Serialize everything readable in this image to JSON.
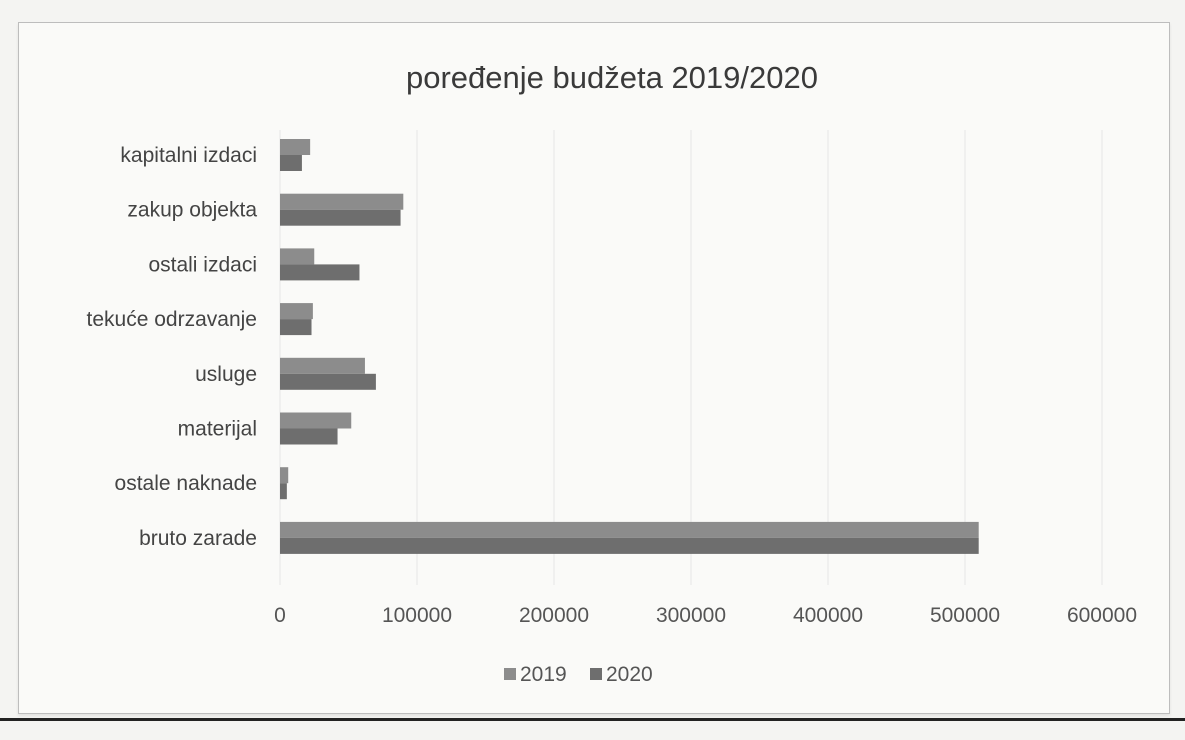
{
  "chart_data": {
    "type": "bar",
    "orientation": "horizontal",
    "title": "poređenje budžeta 2019/2020",
    "categories": [
      "kapitalni izdaci",
      "zakup objekta",
      "ostali izdaci",
      "tekuće odrzavanje",
      "usluge",
      "materijal",
      "ostale naknade",
      "bruto zarade"
    ],
    "series": [
      {
        "name": "2019",
        "values": [
          22000,
          90000,
          25000,
          24000,
          62000,
          52000,
          6000,
          510000
        ]
      },
      {
        "name": "2020",
        "values": [
          16000,
          88000,
          58000,
          23000,
          70000,
          42000,
          5000,
          510000
        ]
      }
    ],
    "xlim": [
      0,
      600000
    ],
    "xticks": [
      0,
      100000,
      200000,
      300000,
      400000,
      500000,
      600000
    ],
    "xtick_labels": [
      "0",
      "100000",
      "200000",
      "300000",
      "400000",
      "500000",
      "600000"
    ],
    "grid": true,
    "legend_position": "bottom",
    "colors": [
      "#8c8c8c",
      "#6e6e6e"
    ]
  }
}
